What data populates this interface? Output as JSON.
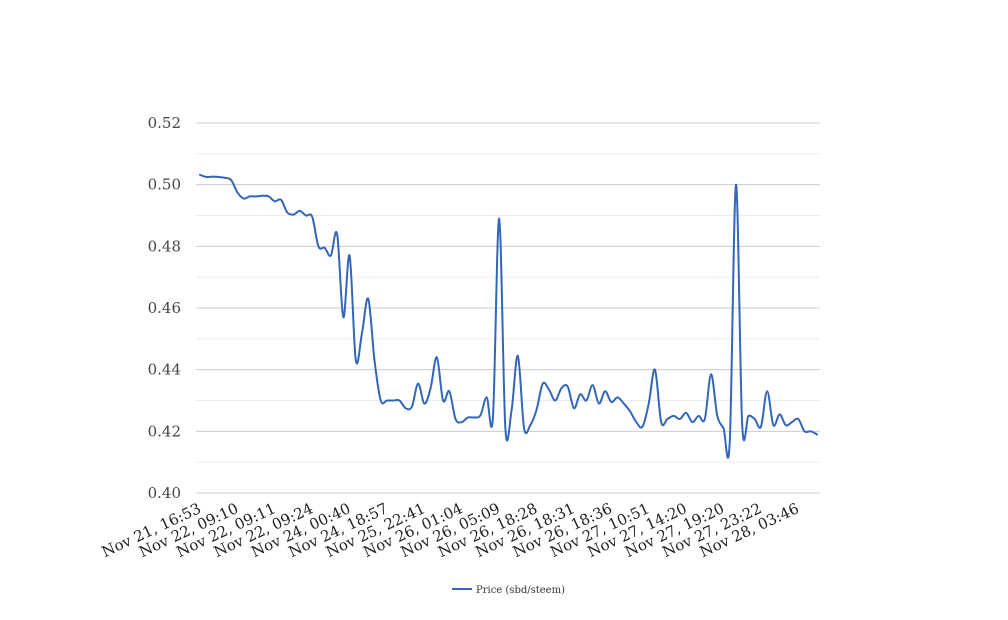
{
  "chart_data": {
    "type": "line",
    "title": "",
    "xlabel": "",
    "ylabel": "",
    "ylim": [
      0.4,
      0.52
    ],
    "yticks": [
      "0.40",
      "0.42",
      "0.44",
      "0.46",
      "0.48",
      "0.50",
      "0.52"
    ],
    "yticks_values": [
      0.4,
      0.42,
      0.44,
      0.46,
      0.48,
      0.5,
      0.52
    ],
    "xtick_labels": [
      "Nov 21, 16:53",
      "Nov 22, 09:10",
      "Nov 22, 09:11",
      "Nov 22, 09:24",
      "Nov 24, 00:40",
      "Nov 24, 18:57",
      "Nov 25, 22:41",
      "Nov 26, 01:04",
      "Nov 26, 05:09",
      "Nov 26, 18:28",
      "Nov 26, 18:31",
      "Nov 26, 18:36",
      "Nov 27, 10:51",
      "Nov 27, 14:20",
      "Nov 27, 19:20",
      "Nov 27, 23:22",
      "Nov 28, 03:46"
    ],
    "grid": true,
    "legend_position": "bottom",
    "series": [
      {
        "name": "Price (sbd/steem)",
        "color": "#3366b8",
        "values": [
          0.5032,
          0.5025,
          0.5026,
          0.5025,
          0.5022,
          0.5015,
          0.4975,
          0.4955,
          0.4962,
          0.4962,
          0.4964,
          0.4962,
          0.4946,
          0.4951,
          0.491,
          0.4903,
          0.4915,
          0.49,
          0.4896,
          0.48,
          0.4795,
          0.477,
          0.484,
          0.457,
          0.477,
          0.443,
          0.452,
          0.463,
          0.443,
          0.43,
          0.43,
          0.43,
          0.43,
          0.4275,
          0.428,
          0.4355,
          0.429,
          0.434,
          0.444,
          0.43,
          0.433,
          0.424,
          0.423,
          0.4245,
          0.4245,
          0.4252,
          0.431,
          0.4245,
          0.489,
          0.421,
          0.427,
          0.4445,
          0.421,
          0.422,
          0.427,
          0.4355,
          0.4335,
          0.43,
          0.434,
          0.4345,
          0.4275,
          0.432,
          0.43,
          0.435,
          0.429,
          0.433,
          0.4295,
          0.431,
          0.429,
          0.4265,
          0.423,
          0.4215,
          0.429,
          0.44,
          0.423,
          0.424,
          0.425,
          0.424,
          0.426,
          0.423,
          0.425,
          0.424,
          0.4385,
          0.425,
          0.421,
          0.4165,
          0.5,
          0.422,
          0.425,
          0.424,
          0.4215,
          0.433,
          0.422,
          0.4255,
          0.422,
          0.423,
          0.424,
          0.42,
          0.42,
          0.419
        ]
      }
    ]
  }
}
